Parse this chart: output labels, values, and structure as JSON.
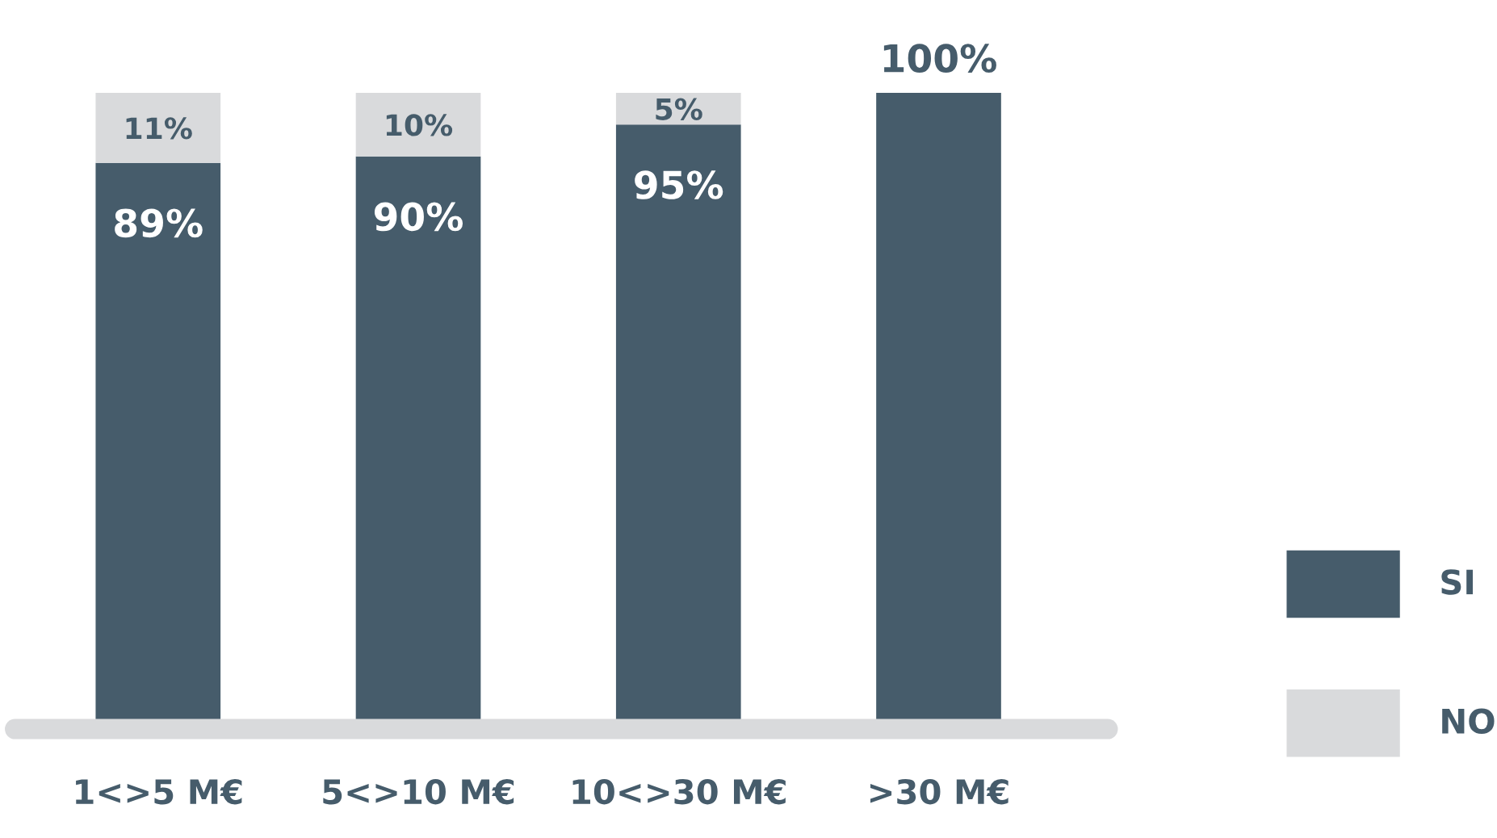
{
  "chart_data": {
    "type": "bar",
    "stacked": true,
    "categories": [
      "1<>5 M€",
      "5<>10 M€",
      "10<>30 M€",
      ">30 M€"
    ],
    "series": [
      {
        "name": "SI",
        "color": "#465c6b",
        "values": [
          89,
          90,
          95,
          100
        ],
        "value_labels": [
          "89%",
          "90%",
          "95%",
          "100%"
        ]
      },
      {
        "name": "NO",
        "color": "#d9dadc",
        "values": [
          11,
          10,
          5,
          0
        ],
        "value_labels": [
          "11%",
          "10%",
          "5%",
          null
        ]
      }
    ],
    "legend": "right",
    "grid": false
  }
}
